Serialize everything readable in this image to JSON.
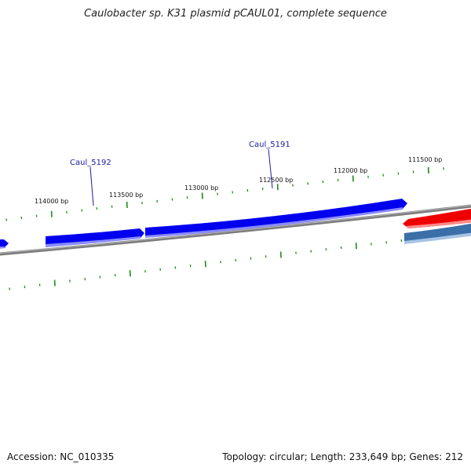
{
  "title": "Caulobacter sp. K31 plasmid pCAUL01, complete sequence",
  "footer": {
    "accession": "Accession: NC_010335",
    "summary": "Topology: circular; Length: 233,649 bp; Genes: 212"
  },
  "scale_labels": [
    "114000 bp",
    "113500 bp",
    "113000 bp",
    "112500 bp",
    "112000 bp",
    "111500 bp"
  ],
  "gene_labels": [
    "Caul_5192",
    "Caul_5191"
  ],
  "colors": {
    "forward_gene": "#0000ee",
    "forward_gene_light": "#8a8aff",
    "red_gene": "#ee0000",
    "steel_gene": "#3a6fa8",
    "backbone": "#808080",
    "ticks": "#1f8a1f"
  }
}
